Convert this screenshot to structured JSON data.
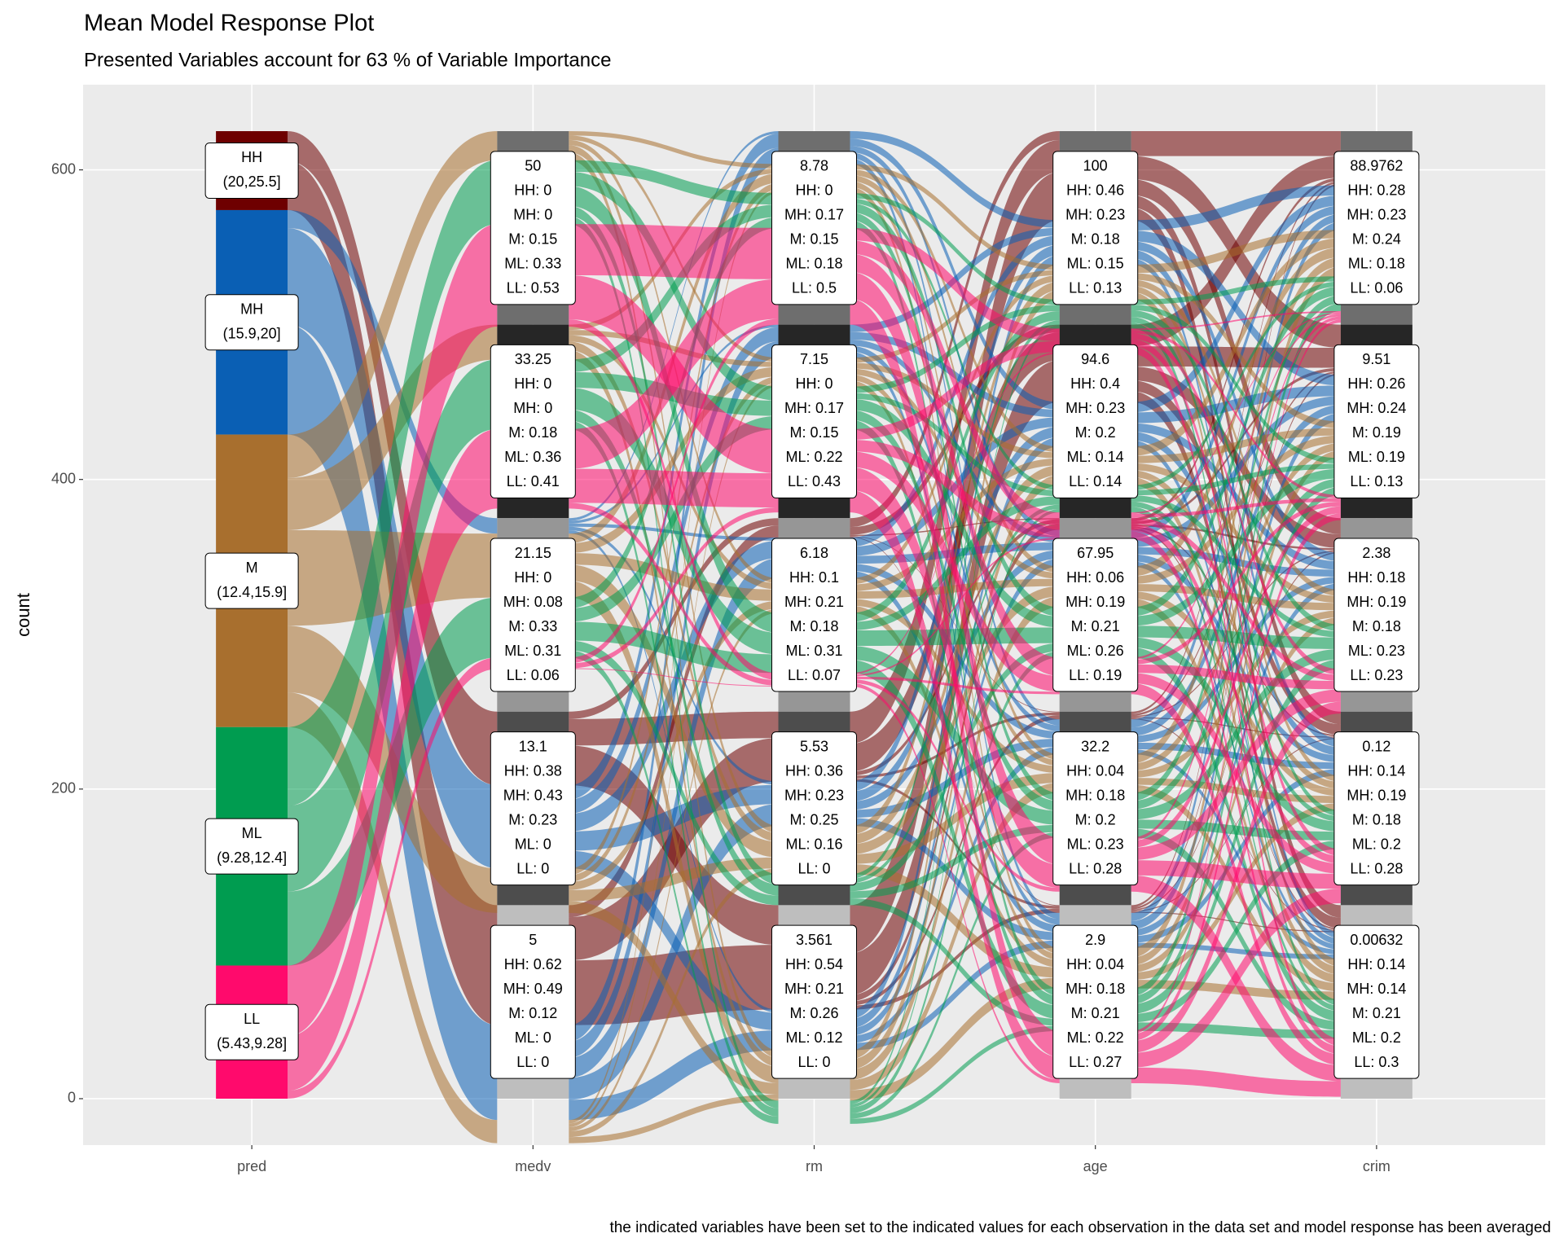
{
  "chart_data": {
    "type": "alluvial",
    "title": "Mean Model Response Plot",
    "subtitle": "Presented Variables account for 63 % of Variable Importance",
    "caption": "the indicated variables have been set to the indicated values for each observation in the data set and model response has been averaged",
    "y_label": "count",
    "categories": [
      "pred",
      "medv",
      "rm",
      "age",
      "crim"
    ],
    "ylim": [
      -30,
      655
    ],
    "yticks": [
      0,
      200,
      400,
      600
    ],
    "grid": true,
    "pred": {
      "strata": [
        {
          "label": "HH",
          "range": "(20,25.5]",
          "count": 51,
          "color": "#6e0000"
        },
        {
          "label": "MH",
          "range": "(15.9,20]",
          "count": 145,
          "color": "#0a5fb4"
        },
        {
          "label": "M",
          "range": "(12.4,15.9]",
          "count": 189,
          "color": "#a86f2e"
        },
        {
          "label": "ML",
          "range": "(9.28,12.4]",
          "count": 154,
          "color": "#009c50"
        },
        {
          "label": "LL",
          "range": "(5.43,9.28]",
          "count": 86,
          "color": "#ff0a6c"
        }
      ]
    },
    "variables": [
      {
        "strata": [
          {
            "level": "50",
            "count": 125,
            "color": "#6e6e6e",
            "values": [
              0,
              0,
              0.15,
              0.33,
              0.53
            ],
            "value_labels": [
              "HH: 0",
              "MH: 0",
              "M: 0.15",
              "ML: 0.33",
              "LL: 0.53"
            ]
          },
          {
            "level": "33.25",
            "count": 125,
            "color": "#262626",
            "values": [
              0,
              0,
              0.18,
              0.36,
              0.41
            ],
            "value_labels": [
              "HH: 0",
              "MH: 0",
              "M: 0.18",
              "ML: 0.36",
              "LL: 0.41"
            ]
          },
          {
            "level": "21.15",
            "count": 125,
            "color": "#969696",
            "values": [
              0,
              0.08,
              0.33,
              0.31,
              0.06
            ],
            "value_labels": [
              "HH: 0",
              "MH: 0.08",
              "M: 0.33",
              "ML: 0.31",
              "LL: 0.06"
            ]
          },
          {
            "level": "13.1",
            "count": 125,
            "color": "#4d4d4d",
            "values": [
              0.38,
              0.43,
              0.23,
              0,
              0
            ],
            "value_labels": [
              "HH: 0.38",
              "MH: 0.43",
              "M: 0.23",
              "ML: 0",
              "LL: 0"
            ]
          },
          {
            "level": "5",
            "count": 125,
            "color": "#bebebe",
            "values": [
              0.62,
              0.49,
              0.12,
              0,
              0
            ],
            "value_labels": [
              "HH: 0.62",
              "MH: 0.49",
              "M: 0.12",
              "ML: 0",
              "LL: 0"
            ]
          }
        ]
      },
      {
        "strata": [
          {
            "level": "8.78",
            "count": 125,
            "color": "#6e6e6e",
            "values": [
              0,
              0.17,
              0.15,
              0.18,
              0.5
            ],
            "value_labels": [
              "HH: 0",
              "MH: 0.17",
              "M: 0.15",
              "ML: 0.18",
              "LL: 0.5"
            ]
          },
          {
            "level": "7.15",
            "count": 125,
            "color": "#262626",
            "values": [
              0,
              0.17,
              0.15,
              0.22,
              0.43
            ],
            "value_labels": [
              "HH: 0",
              "MH: 0.17",
              "M: 0.15",
              "ML: 0.22",
              "LL: 0.43"
            ]
          },
          {
            "level": "6.18",
            "count": 125,
            "color": "#969696",
            "values": [
              0.1,
              0.21,
              0.18,
              0.31,
              0.07
            ],
            "value_labels": [
              "HH: 0.1",
              "MH: 0.21",
              "M: 0.18",
              "ML: 0.31",
              "LL: 0.07"
            ]
          },
          {
            "level": "5.53",
            "count": 125,
            "color": "#4d4d4d",
            "values": [
              0.36,
              0.23,
              0.25,
              0.16,
              0
            ],
            "value_labels": [
              "HH: 0.36",
              "MH: 0.23",
              "M: 0.25",
              "ML: 0.16",
              "LL: 0"
            ]
          },
          {
            "level": "3.561",
            "count": 125,
            "color": "#bebebe",
            "values": [
              0.54,
              0.21,
              0.26,
              0.12,
              0
            ],
            "value_labels": [
              "HH: 0.54",
              "MH: 0.21",
              "M: 0.26",
              "ML: 0.12",
              "LL: 0"
            ]
          }
        ]
      },
      {
        "strata": [
          {
            "level": "100",
            "count": 125,
            "color": "#6e6e6e",
            "values": [
              0.46,
              0.23,
              0.18,
              0.15,
              0.13
            ],
            "value_labels": [
              "HH: 0.46",
              "MH: 0.23",
              "M: 0.18",
              "ML: 0.15",
              "LL: 0.13"
            ]
          },
          {
            "level": "94.6",
            "count": 125,
            "color": "#262626",
            "values": [
              0.4,
              0.23,
              0.2,
              0.14,
              0.14
            ],
            "value_labels": [
              "HH: 0.4",
              "MH: 0.23",
              "M: 0.2",
              "ML: 0.14",
              "LL: 0.14"
            ]
          },
          {
            "level": "67.95",
            "count": 125,
            "color": "#969696",
            "values": [
              0.06,
              0.19,
              0.21,
              0.26,
              0.19
            ],
            "value_labels": [
              "HH: 0.06",
              "MH: 0.19",
              "M: 0.21",
              "ML: 0.26",
              "LL: 0.19"
            ]
          },
          {
            "level": "32.2",
            "count": 125,
            "color": "#4d4d4d",
            "values": [
              0.04,
              0.18,
              0.2,
              0.23,
              0.28
            ],
            "value_labels": [
              "HH: 0.04",
              "MH: 0.18",
              "M: 0.2",
              "ML: 0.23",
              "LL: 0.28"
            ]
          },
          {
            "level": "2.9",
            "count": 125,
            "color": "#bebebe",
            "values": [
              0.04,
              0.18,
              0.21,
              0.22,
              0.27
            ],
            "value_labels": [
              "HH: 0.04",
              "MH: 0.18",
              "M: 0.21",
              "ML: 0.22",
              "LL: 0.27"
            ]
          }
        ]
      },
      {
        "strata": [
          {
            "level": "88.9762",
            "count": 125,
            "color": "#6e6e6e",
            "values": [
              0.28,
              0.23,
              0.24,
              0.18,
              0.06
            ],
            "value_labels": [
              "HH: 0.28",
              "MH: 0.23",
              "M: 0.24",
              "ML: 0.18",
              "LL: 0.06"
            ]
          },
          {
            "level": "9.51",
            "count": 125,
            "color": "#262626",
            "values": [
              0.26,
              0.24,
              0.19,
              0.19,
              0.13
            ],
            "value_labels": [
              "HH: 0.26",
              "MH: 0.24",
              "M: 0.19",
              "ML: 0.19",
              "LL: 0.13"
            ]
          },
          {
            "level": "2.38",
            "count": 125,
            "color": "#969696",
            "values": [
              0.18,
              0.19,
              0.18,
              0.23,
              0.23
            ],
            "value_labels": [
              "HH: 0.18",
              "MH: 0.19",
              "M: 0.18",
              "ML: 0.23",
              "LL: 0.23"
            ]
          },
          {
            "level": "0.12",
            "count": 125,
            "color": "#4d4d4d",
            "values": [
              0.14,
              0.19,
              0.18,
              0.2,
              0.28
            ],
            "value_labels": [
              "HH: 0.14",
              "MH: 0.19",
              "M: 0.18",
              "ML: 0.2",
              "LL: 0.28"
            ]
          },
          {
            "level": "0.00632",
            "count": 125,
            "color": "#bebebe",
            "values": [
              0.14,
              0.14,
              0.21,
              0.2,
              0.3
            ],
            "value_labels": [
              "HH: 0.14",
              "MH: 0.14",
              "M: 0.21",
              "ML: 0.2",
              "LL: 0.3"
            ]
          }
        ]
      }
    ]
  }
}
